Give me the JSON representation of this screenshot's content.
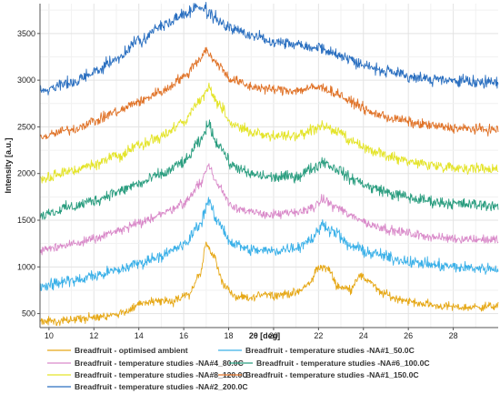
{
  "chart_data": {
    "type": "line",
    "title": "",
    "xlabel": "2θ [deg]",
    "ylabel": "Intensity [a.u.]",
    "xlim": [
      9.6,
      30
    ],
    "ylim": [
      350,
      3820
    ],
    "x_ticks": [
      10,
      12,
      14,
      16,
      18,
      20,
      22,
      24,
      26,
      28
    ],
    "y_ticks": [
      500,
      1000,
      1500,
      2000,
      2500,
      3000,
      3500
    ],
    "grid": true,
    "legend_position": "bottom",
    "series": [
      {
        "name": "Breadfruit - optimised ambient",
        "color": "#e6a817",
        "noise": 22,
        "seed": 1,
        "profile": [
          [
            9.6,
            410
          ],
          [
            11,
            435
          ],
          [
            12.5,
            465
          ],
          [
            13.5,
            530
          ],
          [
            14.3,
            620
          ],
          [
            15,
            640
          ],
          [
            15.5,
            625
          ],
          [
            16.2,
            700
          ],
          [
            16.7,
            900
          ],
          [
            17,
            1260
          ],
          [
            17.3,
            1120
          ],
          [
            17.8,
            810
          ],
          [
            18.3,
            675
          ],
          [
            19,
            660
          ],
          [
            19.6,
            720
          ],
          [
            20,
            700
          ],
          [
            21,
            720
          ],
          [
            21.6,
            820
          ],
          [
            22,
            1000
          ],
          [
            22.4,
            980
          ],
          [
            22.9,
            790
          ],
          [
            23.4,
            760
          ],
          [
            23.8,
            900
          ],
          [
            24.2,
            860
          ],
          [
            24.8,
            720
          ],
          [
            25.5,
            660
          ],
          [
            26.5,
            610
          ],
          [
            27.5,
            580
          ],
          [
            28.5,
            565
          ],
          [
            30,
            580
          ]
        ]
      },
      {
        "name": "Breadfruit - temperature studies -NA#1_50.0C",
        "color": "#3ab0e8",
        "noise": 30,
        "seed": 2,
        "profile": [
          [
            9.6,
            800
          ],
          [
            11,
            850
          ],
          [
            12,
            900
          ],
          [
            13,
            960
          ],
          [
            14,
            1040
          ],
          [
            15,
            1120
          ],
          [
            16,
            1230
          ],
          [
            16.7,
            1450
          ],
          [
            17.1,
            1700
          ],
          [
            17.5,
            1480
          ],
          [
            18.2,
            1250
          ],
          [
            19,
            1180
          ],
          [
            20,
            1170
          ],
          [
            21,
            1210
          ],
          [
            21.7,
            1300
          ],
          [
            22.2,
            1450
          ],
          [
            22.7,
            1380
          ],
          [
            23.4,
            1220
          ],
          [
            24.5,
            1140
          ],
          [
            25.5,
            1080
          ],
          [
            26.5,
            1040
          ],
          [
            27.5,
            1010
          ],
          [
            28.5,
            990
          ],
          [
            30,
            980
          ]
        ]
      },
      {
        "name": "Breadfruit - temperature studies -NA#4_80.0C",
        "color": "#d98ac9",
        "noise": 24,
        "seed": 3,
        "profile": [
          [
            9.6,
            1180
          ],
          [
            11,
            1240
          ],
          [
            12,
            1300
          ],
          [
            13,
            1380
          ],
          [
            14,
            1460
          ],
          [
            15,
            1570
          ],
          [
            16,
            1680
          ],
          [
            16.7,
            1880
          ],
          [
            17.1,
            2080
          ],
          [
            17.5,
            1880
          ],
          [
            18.2,
            1650
          ],
          [
            19,
            1580
          ],
          [
            20,
            1560
          ],
          [
            21,
            1580
          ],
          [
            21.8,
            1640
          ],
          [
            22.2,
            1720
          ],
          [
            22.8,
            1640
          ],
          [
            23.5,
            1540
          ],
          [
            24.5,
            1440
          ],
          [
            25.5,
            1380
          ],
          [
            26.5,
            1340
          ],
          [
            27.5,
            1310
          ],
          [
            28.5,
            1300
          ],
          [
            30,
            1290
          ]
        ]
      },
      {
        "name": "Breadfruit - temperature studies -NA#6_100.0C",
        "color": "#2a9d7f",
        "noise": 30,
        "seed": 4,
        "profile": [
          [
            9.6,
            1560
          ],
          [
            11,
            1640
          ],
          [
            12,
            1710
          ],
          [
            13,
            1800
          ],
          [
            14,
            1890
          ],
          [
            15,
            1990
          ],
          [
            16,
            2120
          ],
          [
            16.7,
            2330
          ],
          [
            17.1,
            2520
          ],
          [
            17.5,
            2320
          ],
          [
            18.2,
            2080
          ],
          [
            19,
            1990
          ],
          [
            20,
            1960
          ],
          [
            21,
            1970
          ],
          [
            21.8,
            2060
          ],
          [
            22.2,
            2130
          ],
          [
            22.8,
            2050
          ],
          [
            23.5,
            1940
          ],
          [
            24.5,
            1840
          ],
          [
            25.5,
            1770
          ],
          [
            26.5,
            1720
          ],
          [
            27.5,
            1690
          ],
          [
            28.5,
            1670
          ],
          [
            30,
            1660
          ]
        ]
      },
      {
        "name": "Breadfruit - temperature studies -NA#8_120.0C",
        "color": "#e4e42a",
        "noise": 28,
        "seed": 5,
        "profile": [
          [
            9.6,
            1940
          ],
          [
            11,
            2020
          ],
          [
            12,
            2100
          ],
          [
            13,
            2190
          ],
          [
            14,
            2290
          ],
          [
            15,
            2400
          ],
          [
            16,
            2560
          ],
          [
            16.7,
            2780
          ],
          [
            17.1,
            2920
          ],
          [
            17.5,
            2760
          ],
          [
            18.2,
            2530
          ],
          [
            19,
            2440
          ],
          [
            20,
            2400
          ],
          [
            21,
            2400
          ],
          [
            21.8,
            2470
          ],
          [
            22.2,
            2510
          ],
          [
            22.8,
            2450
          ],
          [
            23.5,
            2330
          ],
          [
            24.5,
            2230
          ],
          [
            25.5,
            2160
          ],
          [
            26.5,
            2110
          ],
          [
            27.5,
            2080
          ],
          [
            28.5,
            2060
          ],
          [
            30,
            2050
          ]
        ]
      },
      {
        "name": "Breadfruit - temperature studies -NA#1_150.0C",
        "color": "#e0742a",
        "noise": 26,
        "seed": 6,
        "profile": [
          [
            9.6,
            2390
          ],
          [
            11,
            2470
          ],
          [
            12,
            2560
          ],
          [
            13,
            2660
          ],
          [
            14,
            2770
          ],
          [
            15,
            2880
          ],
          [
            16,
            3030
          ],
          [
            16.6,
            3200
          ],
          [
            17,
            3320
          ],
          [
            17.4,
            3190
          ],
          [
            18.2,
            3000
          ],
          [
            19,
            2930
          ],
          [
            20,
            2900
          ],
          [
            21,
            2890
          ],
          [
            21.8,
            2920
          ],
          [
            22.2,
            2920
          ],
          [
            22.8,
            2860
          ],
          [
            23.5,
            2760
          ],
          [
            24.5,
            2640
          ],
          [
            25.5,
            2580
          ],
          [
            26.5,
            2530
          ],
          [
            27.5,
            2500
          ],
          [
            28.5,
            2480
          ],
          [
            30,
            2470
          ]
        ]
      },
      {
        "name": "Breadfruit - temperature studies -NA#2_200.0C",
        "color": "#2a6fc0",
        "noise": 30,
        "seed": 7,
        "profile": [
          [
            9.6,
            2880
          ],
          [
            11,
            2970
          ],
          [
            12,
            3080
          ],
          [
            13,
            3230
          ],
          [
            14,
            3420
          ],
          [
            15,
            3580
          ],
          [
            16,
            3700
          ],
          [
            16.6,
            3790
          ],
          [
            16.9,
            3760
          ],
          [
            17.3,
            3680
          ],
          [
            18,
            3560
          ],
          [
            19,
            3480
          ],
          [
            20,
            3420
          ],
          [
            21,
            3390
          ],
          [
            22,
            3350
          ],
          [
            23,
            3260
          ],
          [
            24,
            3170
          ],
          [
            25,
            3090
          ],
          [
            26,
            3040
          ],
          [
            27,
            3010
          ],
          [
            28,
            2990
          ],
          [
            30,
            2970
          ]
        ]
      }
    ]
  }
}
